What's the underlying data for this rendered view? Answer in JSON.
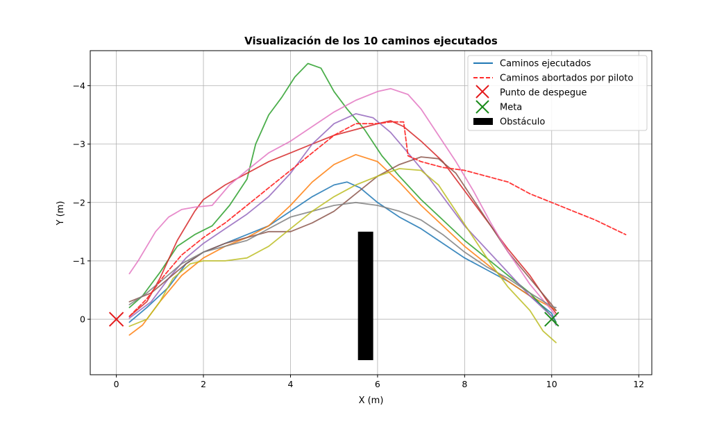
{
  "chart_data": {
    "type": "line",
    "title": "Visualización de los 10 caminos ejecutados",
    "xlabel": "X (m)",
    "ylabel": "Y (m)",
    "xlim": [
      -0.6,
      12.3
    ],
    "ylim": [
      0.95,
      -4.6
    ],
    "y_inverted": true,
    "grid": true,
    "legend_position": "top-right",
    "xticks": [
      0,
      2,
      4,
      6,
      8,
      10,
      12
    ],
    "yticks": [
      0,
      -1,
      -2,
      -3,
      -4
    ],
    "legend": {
      "executed": "Caminos ejecutados",
      "aborted": "Caminos abortados por piloto",
      "takeoff": "Punto de despegue",
      "goal": "Meta",
      "obstacle": "Obstáculo"
    },
    "takeoff_point": {
      "x": 0,
      "y": 0,
      "color": "#e41a1c"
    },
    "goal_point": {
      "x": 10,
      "y": 0,
      "color": "#1a8a1a"
    },
    "obstacle": {
      "x0": 5.55,
      "x1": 5.9,
      "y0": -1.5,
      "y1": 0.7,
      "color": "#000000"
    },
    "series": [
      {
        "color": "#1f77b4",
        "style": "solid",
        "points": [
          [
            0.3,
            0.05
          ],
          [
            0.7,
            -0.2
          ],
          [
            1.2,
            -0.55
          ],
          [
            1.6,
            -0.95
          ],
          [
            2,
            -1.15
          ],
          [
            2.5,
            -1.3
          ],
          [
            3,
            -1.45
          ],
          [
            3.5,
            -1.6
          ],
          [
            4,
            -1.85
          ],
          [
            4.5,
            -2.1
          ],
          [
            5,
            -2.3
          ],
          [
            5.3,
            -2.35
          ],
          [
            5.6,
            -2.25
          ],
          [
            6,
            -2
          ],
          [
            6.5,
            -1.75
          ],
          [
            7,
            -1.55
          ],
          [
            7.5,
            -1.3
          ],
          [
            8,
            -1.05
          ],
          [
            8.5,
            -0.85
          ],
          [
            9,
            -0.65
          ],
          [
            9.5,
            -0.4
          ],
          [
            10,
            -0.1
          ],
          [
            10.1,
            0.05
          ]
        ]
      },
      {
        "color": "#ff7f0e",
        "style": "solid",
        "points": [
          [
            0.3,
            0.27
          ],
          [
            0.6,
            0.1
          ],
          [
            1,
            -0.3
          ],
          [
            1.5,
            -0.75
          ],
          [
            2,
            -1.05
          ],
          [
            2.5,
            -1.25
          ],
          [
            3,
            -1.4
          ],
          [
            3.5,
            -1.6
          ],
          [
            4,
            -1.95
          ],
          [
            4.5,
            -2.35
          ],
          [
            5,
            -2.65
          ],
          [
            5.5,
            -2.82
          ],
          [
            6,
            -2.7
          ],
          [
            6.5,
            -2.35
          ],
          [
            7,
            -1.95
          ],
          [
            7.5,
            -1.6
          ],
          [
            8,
            -1.25
          ],
          [
            8.5,
            -0.95
          ],
          [
            9,
            -0.65
          ],
          [
            9.5,
            -0.4
          ],
          [
            10,
            -0.2
          ],
          [
            10.1,
            -0.15
          ]
        ]
      },
      {
        "color": "#2ca02c",
        "style": "solid",
        "points": [
          [
            0.3,
            -0.2
          ],
          [
            0.6,
            -0.4
          ],
          [
            1,
            -0.8
          ],
          [
            1.4,
            -1.25
          ],
          [
            1.8,
            -1.45
          ],
          [
            2.2,
            -1.6
          ],
          [
            2.6,
            -1.95
          ],
          [
            3,
            -2.4
          ],
          [
            3.2,
            -3
          ],
          [
            3.5,
            -3.5
          ],
          [
            3.8,
            -3.8
          ],
          [
            4.1,
            -4.15
          ],
          [
            4.4,
            -4.38
          ],
          [
            4.7,
            -4.3
          ],
          [
            5,
            -3.9
          ],
          [
            5.3,
            -3.6
          ],
          [
            5.7,
            -3.25
          ],
          [
            6.1,
            -2.8
          ],
          [
            6.5,
            -2.45
          ],
          [
            7,
            -2.05
          ],
          [
            7.5,
            -1.7
          ],
          [
            8,
            -1.35
          ],
          [
            8.5,
            -1.05
          ],
          [
            9,
            -0.75
          ],
          [
            9.5,
            -0.45
          ],
          [
            10,
            -0.05
          ],
          [
            10.1,
            0.05
          ]
        ]
      },
      {
        "color": "#d62728",
        "style": "solid",
        "points": [
          [
            0.3,
            -0.05
          ],
          [
            0.7,
            -0.3
          ],
          [
            1,
            -0.7
          ],
          [
            1.4,
            -1.35
          ],
          [
            1.8,
            -1.85
          ],
          [
            2,
            -2.05
          ],
          [
            2.5,
            -2.3
          ],
          [
            3,
            -2.5
          ],
          [
            3.5,
            -2.7
          ],
          [
            4,
            -2.85
          ],
          [
            4.5,
            -3
          ],
          [
            5,
            -3.15
          ],
          [
            5.5,
            -3.25
          ],
          [
            6,
            -3.35
          ],
          [
            6.3,
            -3.4
          ],
          [
            6.6,
            -3.3
          ],
          [
            7,
            -3.05
          ],
          [
            7.5,
            -2.7
          ],
          [
            8,
            -2.2
          ],
          [
            8.5,
            -1.7
          ],
          [
            9,
            -1.2
          ],
          [
            9.5,
            -0.75
          ],
          [
            10,
            -0.2
          ],
          [
            10.1,
            -0.1
          ]
        ]
      },
      {
        "color": "#9467bd",
        "style": "solid",
        "points": [
          [
            0.3,
            -0.02
          ],
          [
            0.8,
            -0.3
          ],
          [
            1.2,
            -0.7
          ],
          [
            1.6,
            -1.05
          ],
          [
            2,
            -1.3
          ],
          [
            2.5,
            -1.55
          ],
          [
            3,
            -1.8
          ],
          [
            3.5,
            -2.1
          ],
          [
            4,
            -2.5
          ],
          [
            4.5,
            -3
          ],
          [
            5,
            -3.35
          ],
          [
            5.5,
            -3.52
          ],
          [
            5.9,
            -3.45
          ],
          [
            6.3,
            -3.2
          ],
          [
            6.7,
            -2.85
          ],
          [
            7.2,
            -2.4
          ],
          [
            7.6,
            -2
          ],
          [
            8,
            -1.6
          ],
          [
            8.5,
            -1.2
          ],
          [
            9,
            -0.8
          ],
          [
            9.5,
            -0.4
          ],
          [
            10,
            -0.05
          ],
          [
            10.1,
            0.1
          ]
        ]
      },
      {
        "color": "#8c564b",
        "style": "solid",
        "points": [
          [
            0.3,
            -0.3
          ],
          [
            0.8,
            -0.45
          ],
          [
            1.2,
            -0.7
          ],
          [
            1.6,
            -0.95
          ],
          [
            2,
            -1.15
          ],
          [
            2.5,
            -1.3
          ],
          [
            3,
            -1.4
          ],
          [
            3.5,
            -1.5
          ],
          [
            4,
            -1.5
          ],
          [
            4.5,
            -1.65
          ],
          [
            5,
            -1.85
          ],
          [
            5.5,
            -2.15
          ],
          [
            6,
            -2.45
          ],
          [
            6.5,
            -2.65
          ],
          [
            7,
            -2.78
          ],
          [
            7.4,
            -2.75
          ],
          [
            7.8,
            -2.5
          ],
          [
            8.2,
            -2.05
          ],
          [
            8.6,
            -1.6
          ],
          [
            9,
            -1.15
          ],
          [
            9.5,
            -0.7
          ],
          [
            10,
            -0.25
          ],
          [
            10.1,
            -0.15
          ]
        ]
      },
      {
        "color": "#e377c2",
        "style": "solid",
        "points": [
          [
            0.3,
            -0.78
          ],
          [
            0.5,
            -1
          ],
          [
            0.7,
            -1.25
          ],
          [
            0.9,
            -1.5
          ],
          [
            1.2,
            -1.75
          ],
          [
            1.5,
            -1.88
          ],
          [
            1.8,
            -1.92
          ],
          [
            2.2,
            -1.95
          ],
          [
            2.6,
            -2.3
          ],
          [
            3,
            -2.55
          ],
          [
            3.5,
            -2.85
          ],
          [
            4,
            -3.05
          ],
          [
            4.5,
            -3.3
          ],
          [
            5,
            -3.55
          ],
          [
            5.5,
            -3.75
          ],
          [
            6,
            -3.9
          ],
          [
            6.3,
            -3.95
          ],
          [
            6.7,
            -3.85
          ],
          [
            7,
            -3.6
          ],
          [
            7.4,
            -3.15
          ],
          [
            7.8,
            -2.7
          ],
          [
            8.2,
            -2.2
          ],
          [
            8.6,
            -1.65
          ],
          [
            9,
            -1.15
          ],
          [
            9.5,
            -0.6
          ],
          [
            10,
            -0.15
          ],
          [
            10.1,
            -0.05
          ]
        ]
      },
      {
        "color": "#7f7f7f",
        "style": "solid",
        "points": [
          [
            0.3,
            -0.25
          ],
          [
            0.7,
            -0.45
          ],
          [
            1.1,
            -0.7
          ],
          [
            1.5,
            -0.95
          ],
          [
            2,
            -1.15
          ],
          [
            2.5,
            -1.25
          ],
          [
            3,
            -1.35
          ],
          [
            3.5,
            -1.55
          ],
          [
            4,
            -1.75
          ],
          [
            4.5,
            -1.85
          ],
          [
            5,
            -1.95
          ],
          [
            5.5,
            -2
          ],
          [
            6,
            -1.95
          ],
          [
            6.5,
            -1.85
          ],
          [
            7,
            -1.7
          ],
          [
            7.5,
            -1.45
          ],
          [
            8,
            -1.15
          ],
          [
            8.5,
            -0.9
          ],
          [
            9,
            -0.7
          ],
          [
            9.5,
            -0.45
          ],
          [
            10,
            -0.22
          ],
          [
            10.1,
            -0.2
          ]
        ]
      },
      {
        "color": "#bcbd22",
        "style": "solid",
        "points": [
          [
            0.3,
            0.12
          ],
          [
            0.7,
            0
          ],
          [
            1,
            -0.3
          ],
          [
            1.3,
            -0.7
          ],
          [
            1.7,
            -0.95
          ],
          [
            2,
            -1
          ],
          [
            2.5,
            -1
          ],
          [
            3,
            -1.05
          ],
          [
            3.5,
            -1.25
          ],
          [
            4,
            -1.55
          ],
          [
            4.5,
            -1.85
          ],
          [
            5,
            -2.1
          ],
          [
            5.5,
            -2.3
          ],
          [
            6,
            -2.45
          ],
          [
            6.5,
            -2.58
          ],
          [
            7,
            -2.55
          ],
          [
            7.4,
            -2.3
          ],
          [
            7.8,
            -1.85
          ],
          [
            8.2,
            -1.4
          ],
          [
            8.6,
            -0.95
          ],
          [
            9,
            -0.55
          ],
          [
            9.5,
            -0.15
          ],
          [
            9.8,
            0.2
          ],
          [
            10.1,
            0.4
          ]
        ]
      },
      {
        "color": "#ff2a2a",
        "style": "dashed",
        "points": [
          [
            0.3,
            -0.05
          ],
          [
            0.7,
            -0.35
          ],
          [
            1.1,
            -0.75
          ],
          [
            1.5,
            -1.1
          ],
          [
            2,
            -1.4
          ],
          [
            2.5,
            -1.65
          ],
          [
            3,
            -1.95
          ],
          [
            3.5,
            -2.25
          ],
          [
            4,
            -2.55
          ],
          [
            4.5,
            -2.85
          ],
          [
            5,
            -3.15
          ],
          [
            5.5,
            -3.35
          ],
          [
            6,
            -3.35
          ],
          [
            6.3,
            -3.38
          ],
          [
            6.6,
            -3.38
          ],
          [
            6.7,
            -2.8
          ],
          [
            7,
            -2.7
          ],
          [
            7.5,
            -2.6
          ],
          [
            8,
            -2.55
          ],
          [
            8.5,
            -2.45
          ],
          [
            9,
            -2.35
          ],
          [
            9.5,
            -2.15
          ],
          [
            10,
            -2
          ],
          [
            10.5,
            -1.85
          ],
          [
            11,
            -1.7
          ],
          [
            11.7,
            -1.45
          ]
        ]
      }
    ]
  }
}
